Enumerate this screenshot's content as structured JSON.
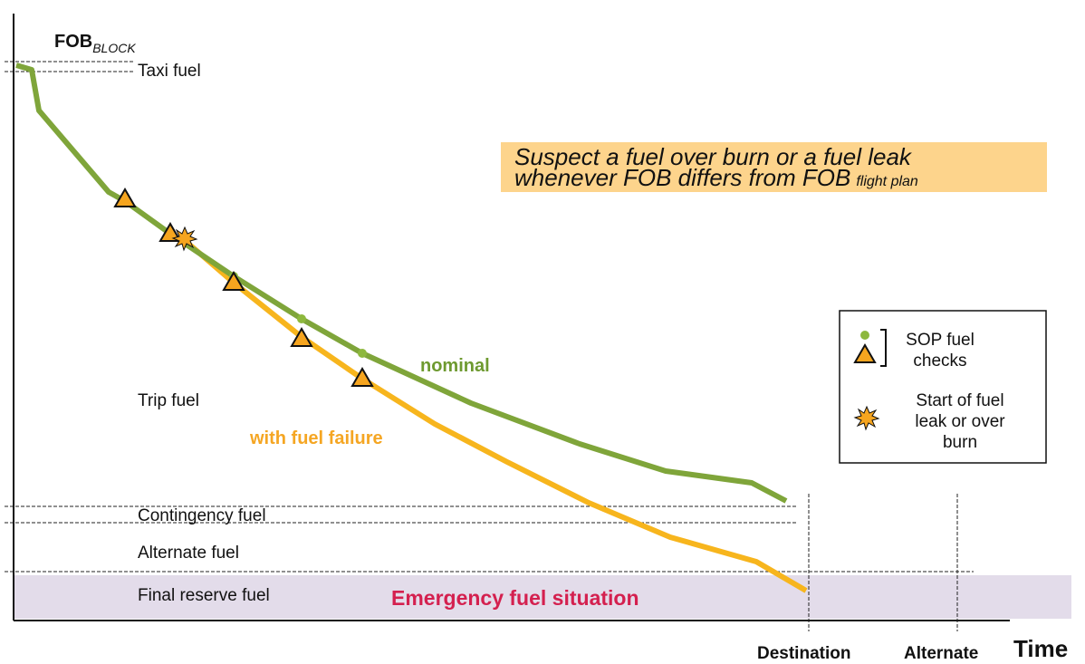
{
  "diagram": {
    "fob_label": "FOB",
    "fob_sub": "BLOCK",
    "callout": {
      "lines": [
        "Suspect a fuel over burn or a fuel leak",
        "whenever FOB differs from FOB"
      ],
      "sub": "flight plan"
    },
    "curve_labels": {
      "nominal": "nominal",
      "failure": "with fuel failure"
    },
    "fuel_labels": {
      "taxi": "Taxi fuel",
      "trip": "Trip fuel",
      "contingency": "Contingency fuel",
      "alternate": "Alternate fuel",
      "final_reserve": "Final reserve fuel"
    },
    "emergency": "Emergency fuel situation",
    "legend": {
      "checks": [
        "SOP fuel",
        "checks"
      ],
      "start": [
        "Start of fuel",
        "leak or over",
        "burn"
      ]
    },
    "x_labels": {
      "destination": "Destination",
      "alternate": "Alternate",
      "time": "Time"
    }
  }
}
